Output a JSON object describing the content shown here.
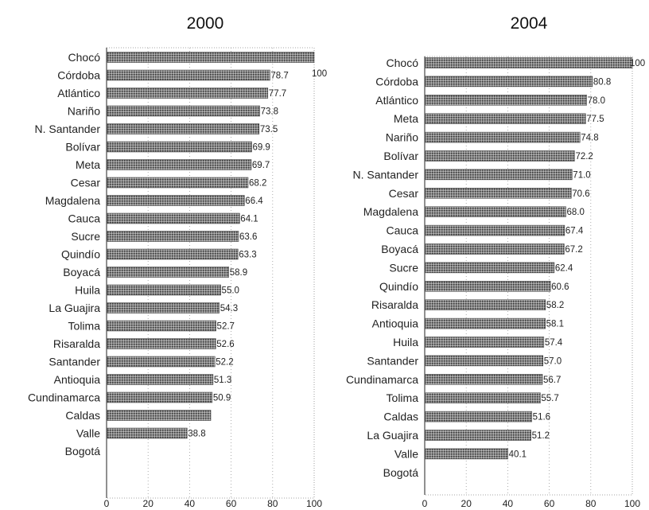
{
  "chart_data": [
    {
      "type": "bar",
      "orientation": "horizontal",
      "title": "2000",
      "xlim": [
        0,
        100
      ],
      "xticks": [
        "0",
        "20",
        "40",
        "60",
        "80",
        "100"
      ],
      "grid": true,
      "categories": [
        "Chocó",
        "Córdoba",
        "Atlántico",
        "Nariño",
        "N. Santander",
        "Bolívar",
        "Meta",
        "Cesar",
        "Magdalena",
        "Cauca",
        "Sucre",
        "Quindío",
        "Boyacá",
        "Huila",
        "La Guajira",
        "Tolima",
        "Risaralda",
        "Santander",
        "Antioquia",
        "Cundinamarca",
        "Caldas",
        "Valle",
        "Bogotá"
      ],
      "values": [
        100,
        78.7,
        77.7,
        73.8,
        73.5,
        69.9,
        69.7,
        68.2,
        66.4,
        64.1,
        63.6,
        63.3,
        58.9,
        55.0,
        54.3,
        52.7,
        52.6,
        52.2,
        51.3,
        50.9,
        50.2,
        38.8,
        0
      ],
      "labels": [
        "100",
        "78.7",
        "77.7",
        "73.8",
        "73.5",
        "69.9",
        "69.7",
        "68.2",
        "66.4",
        "64.1",
        "63.6",
        "63.3",
        "58.9",
        "55.0",
        "54.3",
        "52.7",
        "52.6",
        "52.2",
        "51.3",
        "50.9",
        "",
        "38.8",
        ""
      ]
    },
    {
      "type": "bar",
      "orientation": "horizontal",
      "title": "2004",
      "xlim": [
        0,
        100
      ],
      "xticks": [
        "0",
        "20",
        "40",
        "60",
        "80",
        "100"
      ],
      "grid": true,
      "categories": [
        "Chocó",
        "Córdoba",
        "Atlántico",
        "Meta",
        "Nariño",
        "Bolívar",
        "N. Santander",
        "Cesar",
        "Magdalena",
        "Cauca",
        "Boyacá",
        "Sucre",
        "Quindío",
        "Risaralda",
        "Antioquia",
        "Huila",
        "Santander",
        "Cundinamarca",
        "Tolima",
        "Caldas",
        "La Guajira",
        "Valle",
        "Bogotá"
      ],
      "values": [
        100,
        80.8,
        78.0,
        77.5,
        74.8,
        72.2,
        71.0,
        70.6,
        68.0,
        67.4,
        67.2,
        62.4,
        60.6,
        58.2,
        58.1,
        57.4,
        57.0,
        56.7,
        55.7,
        51.6,
        51.2,
        40.1,
        0
      ],
      "labels": [
        "100",
        "80.8",
        "78.0",
        "77.5",
        "74.8",
        "72.2",
        "71.0",
        "70.6",
        "68.0",
        "67.4",
        "67.2",
        "62.4",
        "60.6",
        "58.2",
        "58.1",
        "57.4",
        "57.0",
        "56.7",
        "55.7",
        "51.6",
        "51.2",
        "40.1",
        ""
      ]
    }
  ]
}
